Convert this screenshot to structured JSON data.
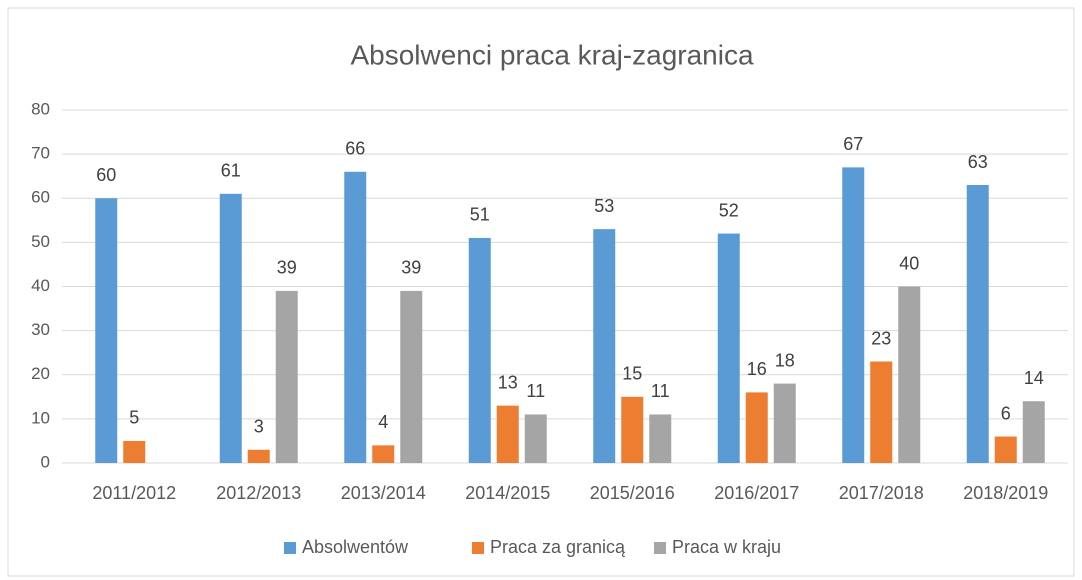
{
  "chart_data": {
    "type": "bar",
    "title": "Absolwenci praca kraj-zagranica",
    "categories": [
      "2011/2012",
      "2012/2013",
      "2013/2014",
      "2014/2015",
      "2015/2016",
      "2016/2017",
      "2017/2018",
      "2018/2019"
    ],
    "series": [
      {
        "name": "Absolwentów",
        "color": "#5b9bd5",
        "values": [
          60,
          61,
          66,
          51,
          53,
          52,
          67,
          63
        ]
      },
      {
        "name": "Praca za granicą",
        "color": "#ed7d31",
        "values": [
          5,
          3,
          4,
          13,
          15,
          16,
          23,
          6
        ]
      },
      {
        "name": "Praca w kraju",
        "color": "#a5a5a5",
        "values": [
          null,
          39,
          39,
          11,
          11,
          18,
          40,
          14
        ]
      }
    ],
    "ylim": [
      0,
      80
    ],
    "yticks": [
      0,
      10,
      20,
      30,
      40,
      50,
      60,
      70,
      80
    ],
    "grid": true,
    "legend": "bottom"
  }
}
